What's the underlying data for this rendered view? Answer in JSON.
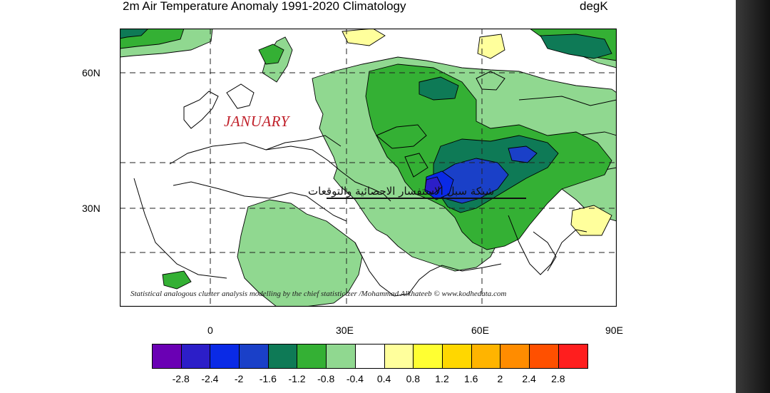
{
  "header": {
    "title": "2m Air Temperature Anomaly  1991-2020 Climatology",
    "units": "degK"
  },
  "map": {
    "month_label": "JANUARY",
    "arabic_caption": "شبكة سبل الاستفسار الاحصائية والتوقعات",
    "credit": "Statistical analogous cluster analysis modelling by the chief statisticizer /Mohammad Alkhateeb © www.kodhedata.com",
    "lat_labels": [
      "60N",
      "30N"
    ],
    "lon_labels": [
      "0",
      "30E",
      "60E",
      "90E"
    ]
  },
  "colorbar": {
    "colors": [
      "#6a00b4",
      "#2c1ec8",
      "#0a2ae6",
      "#1a40c8",
      "#0e7a56",
      "#34b034",
      "#90d890",
      "#ffffff",
      "#ffff9c",
      "#ffff32",
      "#ffd700",
      "#ffb400",
      "#ff8c00",
      "#ff5000",
      "#ff1e1e"
    ],
    "labels": [
      "-2.8",
      "-2.4",
      "-2",
      "-1.6",
      "-1.2",
      "-0.8",
      "-0.4",
      "0.4",
      "0.8",
      "1.2",
      "1.6",
      "2",
      "2.4",
      "2.8"
    ]
  }
}
